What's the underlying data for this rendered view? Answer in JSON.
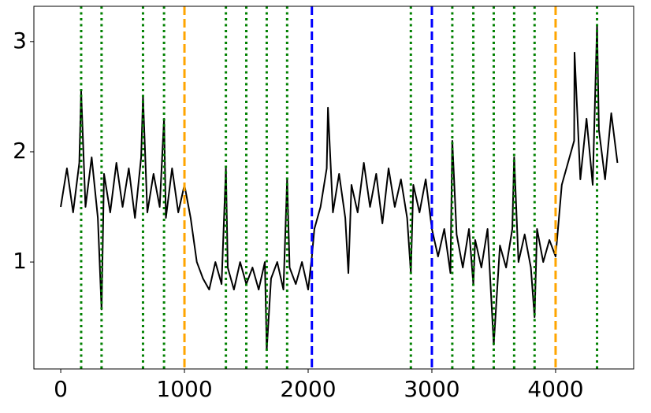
{
  "chart_data": {
    "type": "line",
    "x": [
      0,
      50,
      100,
      150,
      165,
      200,
      250,
      300,
      330,
      350,
      400,
      450,
      500,
      550,
      600,
      650,
      665,
      700,
      750,
      800,
      835,
      850,
      900,
      950,
      1000,
      1050,
      1100,
      1150,
      1200,
      1250,
      1300,
      1335,
      1350,
      1400,
      1450,
      1500,
      1550,
      1600,
      1650,
      1665,
      1700,
      1750,
      1800,
      1830,
      1850,
      1900,
      1950,
      2000,
      2030,
      2050,
      2100,
      2150,
      2160,
      2200,
      2250,
      2300,
      2325,
      2350,
      2400,
      2450,
      2500,
      2550,
      2600,
      2650,
      2700,
      2750,
      2800,
      2830,
      2850,
      2900,
      2950,
      3000,
      3050,
      3100,
      3150,
      3165,
      3200,
      3250,
      3300,
      3335,
      3350,
      3400,
      3450,
      3500,
      3550,
      3600,
      3650,
      3665,
      3700,
      3750,
      3800,
      3830,
      3850,
      3900,
      3950,
      4000,
      4050,
      4100,
      4150,
      4153,
      4200,
      4250,
      4300,
      4335,
      4350,
      4400,
      4450,
      4500
    ],
    "series": [
      {
        "color": "#000000",
        "values": [
          1.5,
          1.85,
          1.45,
          1.9,
          2.55,
          1.5,
          1.95,
          1.4,
          0.57,
          1.8,
          1.45,
          1.9,
          1.5,
          1.85,
          1.4,
          1.95,
          2.5,
          1.45,
          1.8,
          1.5,
          2.3,
          1.4,
          1.85,
          1.45,
          1.7,
          1.4,
          1.0,
          0.85,
          0.75,
          1.0,
          0.8,
          1.85,
          0.95,
          0.75,
          1.0,
          0.8,
          0.95,
          0.75,
          1.0,
          0.2,
          0.85,
          1.0,
          0.75,
          1.75,
          0.95,
          0.8,
          1.0,
          0.75,
          1.05,
          1.3,
          1.5,
          1.85,
          2.4,
          1.45,
          1.8,
          1.4,
          0.9,
          1.7,
          1.45,
          1.9,
          1.5,
          1.8,
          1.35,
          1.85,
          1.5,
          1.75,
          1.4,
          0.9,
          1.7,
          1.45,
          1.75,
          1.3,
          1.05,
          1.3,
          0.9,
          2.1,
          1.25,
          0.95,
          1.3,
          0.8,
          1.2,
          0.95,
          1.3,
          0.25,
          1.15,
          0.95,
          1.3,
          1.95,
          1.0,
          1.25,
          0.95,
          0.5,
          1.3,
          1.0,
          1.2,
          1.05,
          1.7,
          1.9,
          2.1,
          2.9,
          1.75,
          2.3,
          1.7,
          3.15,
          2.2,
          1.75,
          2.35,
          1.9
        ]
      }
    ],
    "vertical_lines": [
      {
        "color": "green",
        "style": "dotted",
        "x": [
          165,
          330,
          665,
          835,
          1335,
          1500,
          1665,
          1830,
          2830,
          3165,
          3335,
          3500,
          3665,
          3830,
          4335
        ]
      },
      {
        "color": "orange",
        "style": "dashed",
        "x": [
          1000,
          4000
        ]
      },
      {
        "color": "blue",
        "style": "dashed",
        "x": [
          2030,
          3000
        ]
      }
    ],
    "xlim": [
      -217,
      4631
    ],
    "ylim": [
      0.03,
      3.32
    ],
    "xticks": [
      0,
      1000,
      2000,
      3000,
      4000
    ],
    "yticks": [
      1,
      2,
      3
    ],
    "grid": false
  }
}
